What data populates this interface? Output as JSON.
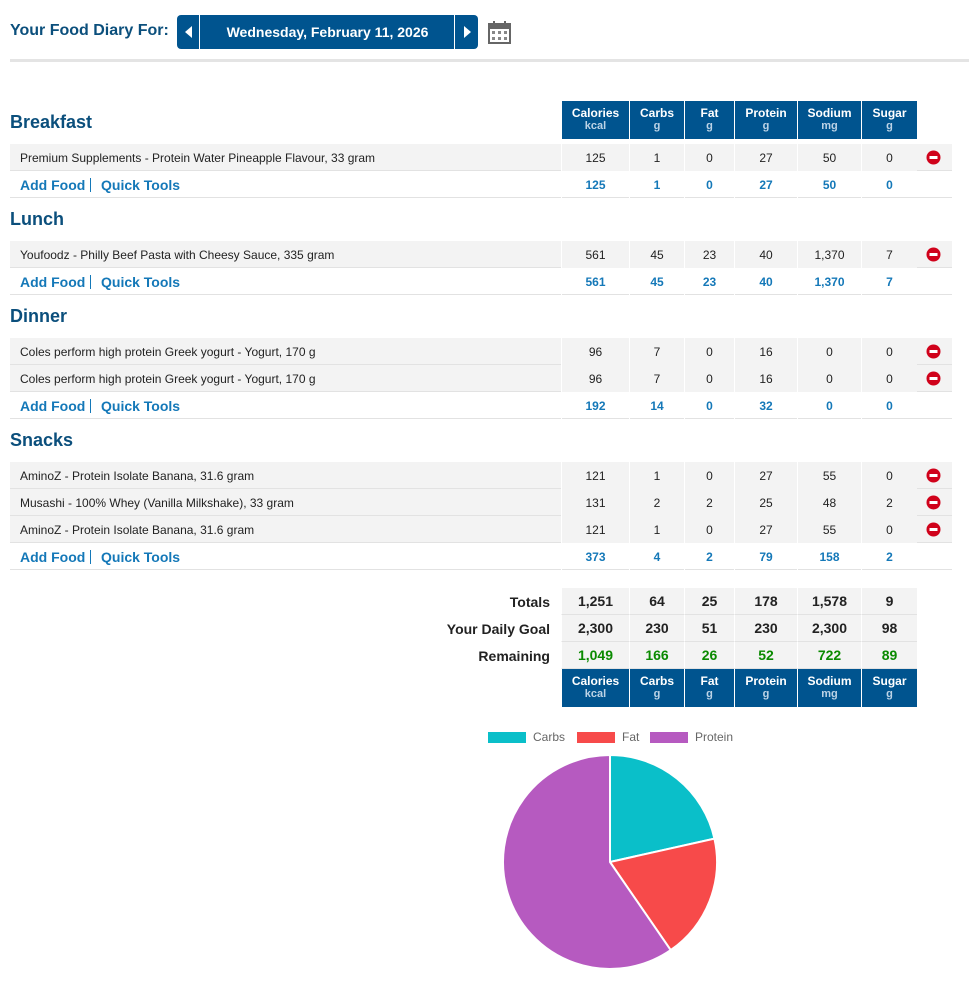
{
  "header": {
    "title": "Your Food Diary For:",
    "date": "Wednesday, February 11, 2026"
  },
  "columns": [
    {
      "name": "Calories",
      "unit": "kcal"
    },
    {
      "name": "Carbs",
      "unit": "g"
    },
    {
      "name": "Fat",
      "unit": "g"
    },
    {
      "name": "Protein",
      "unit": "g"
    },
    {
      "name": "Sodium",
      "unit": "mg"
    },
    {
      "name": "Sugar",
      "unit": "g"
    }
  ],
  "links": {
    "add_food": "Add Food",
    "quick_tools": "Quick Tools"
  },
  "meals": [
    {
      "name": "Breakfast",
      "entries": [
        {
          "food": "Premium Supplements - Protein Water Pineapple Flavour, 33 gram",
          "values": [
            "125",
            "1",
            "0",
            "27",
            "50",
            "0"
          ]
        }
      ],
      "totals": [
        "125",
        "1",
        "0",
        "27",
        "50",
        "0"
      ]
    },
    {
      "name": "Lunch",
      "entries": [
        {
          "food": "Youfoodz - Philly Beef Pasta with Cheesy Sauce, 335 gram",
          "values": [
            "561",
            "45",
            "23",
            "40",
            "1,370",
            "7"
          ]
        }
      ],
      "totals": [
        "561",
        "45",
        "23",
        "40",
        "1,370",
        "7"
      ]
    },
    {
      "name": "Dinner",
      "entries": [
        {
          "food": "Coles perform high protein Greek yogurt - Yogurt, 170 g",
          "values": [
            "96",
            "7",
            "0",
            "16",
            "0",
            "0"
          ]
        },
        {
          "food": "Coles perform high protein Greek yogurt - Yogurt, 170 g",
          "values": [
            "96",
            "7",
            "0",
            "16",
            "0",
            "0"
          ]
        }
      ],
      "totals": [
        "192",
        "14",
        "0",
        "32",
        "0",
        "0"
      ]
    },
    {
      "name": "Snacks",
      "entries": [
        {
          "food": "AminoZ - Protein Isolate Banana, 31.6 gram",
          "values": [
            "121",
            "1",
            "0",
            "27",
            "55",
            "0"
          ]
        },
        {
          "food": "Musashi - 100% Whey (Vanilla Milkshake), 33 gram",
          "values": [
            "131",
            "2",
            "2",
            "25",
            "48",
            "2"
          ]
        },
        {
          "food": "AminoZ - Protein Isolate Banana, 31.6 gram",
          "values": [
            "121",
            "1",
            "0",
            "27",
            "55",
            "0"
          ]
        }
      ],
      "totals": [
        "373",
        "4",
        "2",
        "79",
        "158",
        "2"
      ]
    }
  ],
  "summary": [
    {
      "label": "Totals",
      "values": [
        "1,251",
        "64",
        "25",
        "178",
        "1,578",
        "9"
      ]
    },
    {
      "label": "Your Daily Goal",
      "values": [
        "2,300",
        "230",
        "51",
        "230",
        "2,300",
        "98"
      ]
    },
    {
      "label": "Remaining",
      "values": [
        "1,049",
        "166",
        "26",
        "52",
        "722",
        "89"
      ]
    }
  ],
  "chart_data": {
    "type": "pie",
    "categories": [
      "Carbs",
      "Fat",
      "Protein"
    ],
    "values": [
      21.5,
      18.9,
      59.6
    ],
    "colors": [
      "#0abfc9",
      "#f74a4a",
      "#b65ac0"
    ],
    "legend": "top"
  }
}
